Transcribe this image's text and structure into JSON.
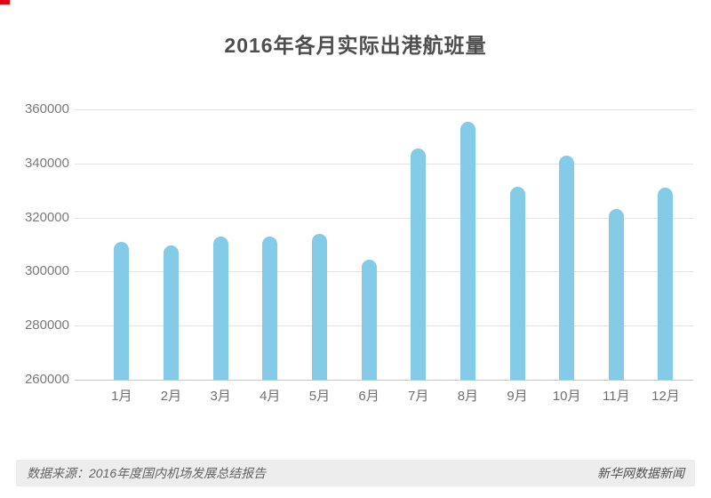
{
  "title": "2016年各月实际出港航班量",
  "accent": {
    "red_mark_color": "#e60012"
  },
  "footer": {
    "source": "数据来源：2016年度国内机场发展总结报告",
    "publisher": "新华网数据新闻"
  },
  "chart_data": {
    "type": "bar",
    "title": "2016年各月实际出港航班量",
    "categories": [
      "1月",
      "2月",
      "3月",
      "4月",
      "5月",
      "6月",
      "7月",
      "8月",
      "9月",
      "10月",
      "11月",
      "12月"
    ],
    "values": [
      311000,
      309700,
      313100,
      312800,
      313900,
      304400,
      345500,
      355400,
      331300,
      343000,
      323300,
      331000
    ],
    "xlabel": "",
    "ylabel": "",
    "ylim": [
      260000,
      360000
    ],
    "yticks": [
      260000,
      280000,
      300000,
      320000,
      340000,
      360000
    ],
    "ytick_labels": [
      "260000",
      "280000",
      "300000",
      "320000",
      "340000",
      "360000"
    ],
    "grid": true,
    "legend_position": "none",
    "bar_color": "#84cbe8"
  }
}
